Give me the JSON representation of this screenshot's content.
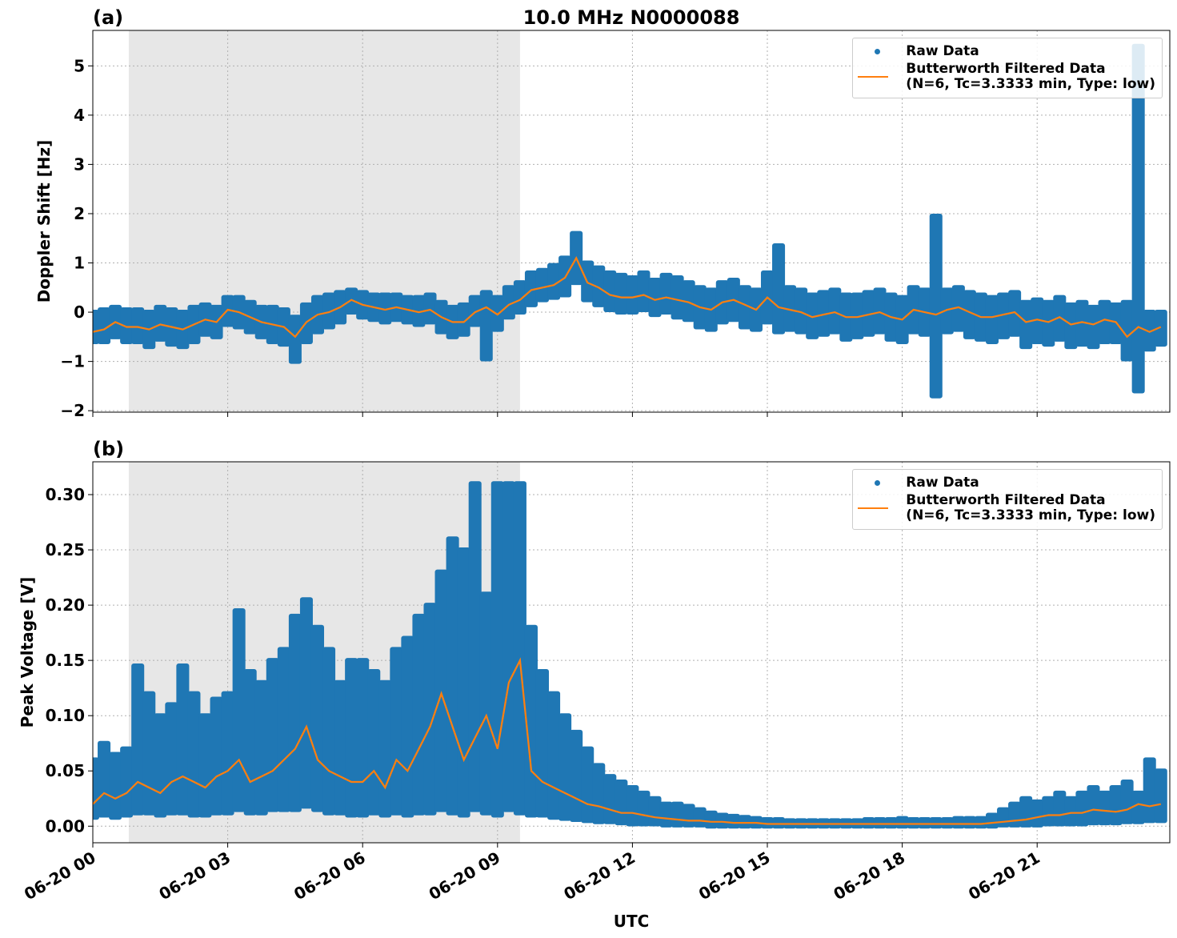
{
  "chart_data": [
    {
      "type": "line",
      "panel": "(a)",
      "title": "10.0 MHz N0000088",
      "ylabel": "Doppler Shift [Hz]",
      "xlim": [
        0,
        23.95
      ],
      "ylim": [
        -2.03,
        5.72
      ],
      "grid": true,
      "shaded_span": [
        0.8,
        9.5
      ],
      "xticks": [
        0,
        3,
        6,
        9,
        12,
        15,
        18,
        21
      ],
      "yticks": [
        {
          "value": -2,
          "label": "−2"
        },
        {
          "value": -1,
          "label": "−1"
        },
        0,
        1,
        2,
        3,
        4,
        5
      ],
      "legend": "upper right",
      "x": [
        0,
        0.25,
        0.5,
        0.75,
        1,
        1.25,
        1.5,
        1.75,
        2,
        2.25,
        2.5,
        2.75,
        3,
        3.25,
        3.5,
        3.75,
        4,
        4.25,
        4.5,
        4.75,
        5,
        5.25,
        5.5,
        5.75,
        6,
        6.25,
        6.5,
        6.75,
        7,
        7.25,
        7.5,
        7.75,
        8,
        8.25,
        8.5,
        8.75,
        9,
        9.25,
        9.5,
        9.75,
        10,
        10.25,
        10.5,
        10.75,
        11,
        11.25,
        11.5,
        11.75,
        12,
        12.25,
        12.5,
        12.75,
        13,
        13.25,
        13.5,
        13.75,
        14,
        14.25,
        14.5,
        14.75,
        15,
        15.25,
        15.5,
        15.75,
        16,
        16.25,
        16.5,
        16.75,
        17,
        17.25,
        17.5,
        17.75,
        18,
        18.25,
        18.5,
        18.75,
        19,
        19.25,
        19.5,
        19.75,
        20,
        20.25,
        20.5,
        20.75,
        21,
        21.25,
        21.5,
        21.75,
        22,
        22.25,
        22.5,
        22.75,
        23,
        23.25,
        23.5,
        23.75
      ],
      "series": [
        {
          "name": "Raw Data",
          "color": "#1f77b4",
          "style": "range",
          "values": [
            0.0,
            0.05,
            0.1,
            0.05,
            0.05,
            0.0,
            0.1,
            0.05,
            0.0,
            0.1,
            0.15,
            0.1,
            0.3,
            0.3,
            0.2,
            0.1,
            0.1,
            0.05,
            -0.1,
            0.15,
            0.3,
            0.35,
            0.4,
            0.45,
            0.4,
            0.35,
            0.35,
            0.35,
            0.3,
            0.3,
            0.35,
            0.2,
            0.1,
            0.15,
            0.3,
            0.4,
            0.3,
            0.5,
            0.6,
            0.8,
            0.85,
            0.95,
            1.1,
            1.6,
            1.0,
            0.9,
            0.8,
            0.75,
            0.7,
            0.8,
            0.65,
            0.75,
            0.7,
            0.6,
            0.5,
            0.45,
            0.6,
            0.65,
            0.5,
            0.45,
            0.8,
            1.35,
            0.5,
            0.45,
            0.35,
            0.4,
            0.45,
            0.35,
            0.35,
            0.4,
            0.45,
            0.35,
            0.3,
            0.5,
            0.45,
            1.95,
            0.45,
            0.5,
            0.4,
            0.35,
            0.3,
            0.35,
            0.4,
            0.2,
            0.25,
            0.2,
            0.3,
            0.15,
            0.2,
            0.1,
            0.2,
            0.15,
            0.2,
            5.4,
            0.0,
            0.0
          ],
          "values_low": [
            -0.6,
            -0.6,
            -0.5,
            -0.6,
            -0.6,
            -0.7,
            -0.55,
            -0.65,
            -0.7,
            -0.6,
            -0.45,
            -0.5,
            -0.25,
            -0.3,
            -0.4,
            -0.5,
            -0.6,
            -0.65,
            -1.0,
            -0.6,
            -0.4,
            -0.3,
            -0.2,
            0.0,
            -0.1,
            -0.15,
            -0.2,
            -0.15,
            -0.2,
            -0.25,
            -0.2,
            -0.4,
            -0.5,
            -0.45,
            -0.25,
            -0.95,
            -0.35,
            -0.1,
            0.0,
            0.15,
            0.25,
            0.3,
            0.35,
            0.6,
            0.25,
            0.15,
            0.05,
            0.0,
            0.0,
            0.05,
            -0.05,
            0.0,
            -0.1,
            -0.15,
            -0.3,
            -0.35,
            -0.2,
            -0.15,
            -0.3,
            -0.35,
            -0.2,
            -0.4,
            -0.35,
            -0.4,
            -0.5,
            -0.45,
            -0.4,
            -0.55,
            -0.5,
            -0.45,
            -0.4,
            -0.55,
            -0.6,
            -0.4,
            -0.45,
            -1.7,
            -0.4,
            -0.35,
            -0.5,
            -0.55,
            -0.6,
            -0.5,
            -0.45,
            -0.7,
            -0.6,
            -0.65,
            -0.55,
            -0.7,
            -0.65,
            -0.7,
            -0.6,
            -0.6,
            -0.95,
            -1.6,
            -0.75,
            -0.65
          ]
        },
        {
          "name": "Butterworth Filtered Data\n(N=6, Tc=3.3333 min, Type: low)",
          "color": "#ff7f0e",
          "style": "line",
          "values": [
            -0.4,
            -0.35,
            -0.2,
            -0.3,
            -0.3,
            -0.35,
            -0.25,
            -0.3,
            -0.35,
            -0.25,
            -0.15,
            -0.2,
            0.05,
            0.0,
            -0.1,
            -0.2,
            -0.25,
            -0.3,
            -0.5,
            -0.2,
            -0.05,
            0.0,
            0.1,
            0.25,
            0.15,
            0.1,
            0.05,
            0.1,
            0.05,
            0.0,
            0.05,
            -0.1,
            -0.2,
            -0.2,
            0.0,
            0.1,
            -0.05,
            0.15,
            0.25,
            0.45,
            0.5,
            0.55,
            0.7,
            1.1,
            0.6,
            0.5,
            0.35,
            0.3,
            0.3,
            0.35,
            0.25,
            0.3,
            0.25,
            0.2,
            0.1,
            0.05,
            0.2,
            0.25,
            0.15,
            0.05,
            0.3,
            0.1,
            0.05,
            0.0,
            -0.1,
            -0.05,
            0.0,
            -0.1,
            -0.1,
            -0.05,
            0.0,
            -0.1,
            -0.15,
            0.05,
            0.0,
            -0.05,
            0.05,
            0.1,
            0.0,
            -0.1,
            -0.1,
            -0.05,
            0.0,
            -0.2,
            -0.15,
            -0.2,
            -0.1,
            -0.25,
            -0.2,
            -0.25,
            -0.15,
            -0.2,
            -0.5,
            -0.3,
            -0.4,
            -0.3
          ]
        }
      ]
    },
    {
      "type": "line",
      "panel": "(b)",
      "ylabel": "Peak Voltage [V]",
      "xlabel": "UTC",
      "xlim": [
        0,
        23.95
      ],
      "ylim": [
        -0.015,
        0.3297
      ],
      "grid": true,
      "shaded_span": [
        0.8,
        9.5
      ],
      "xticks": [
        {
          "value": 0,
          "label": "06-20 00"
        },
        {
          "value": 3,
          "label": "06-20 03"
        },
        {
          "value": 6,
          "label": "06-20 06"
        },
        {
          "value": 9,
          "label": "06-20 09"
        },
        {
          "value": 12,
          "label": "06-20 12"
        },
        {
          "value": 15,
          "label": "06-20 15"
        },
        {
          "value": 18,
          "label": "06-20 18"
        },
        {
          "value": 21,
          "label": "06-20 21"
        }
      ],
      "yticks": [
        {
          "value": 0,
          "label": "0.00"
        },
        {
          "value": 0.05,
          "label": "0.05"
        },
        {
          "value": 0.1,
          "label": "0.10"
        },
        {
          "value": 0.15,
          "label": "0.15"
        },
        {
          "value": 0.2,
          "label": "0.20"
        },
        {
          "value": 0.25,
          "label": "0.25"
        },
        {
          "value": 0.3,
          "label": "0.30"
        }
      ],
      "legend": "upper right",
      "x": [
        0,
        0.25,
        0.5,
        0.75,
        1,
        1.25,
        1.5,
        1.75,
        2,
        2.25,
        2.5,
        2.75,
        3,
        3.25,
        3.5,
        3.75,
        4,
        4.25,
        4.5,
        4.75,
        5,
        5.25,
        5.5,
        5.75,
        6,
        6.25,
        6.5,
        6.75,
        7,
        7.25,
        7.5,
        7.75,
        8,
        8.25,
        8.5,
        8.75,
        9,
        9.25,
        9.5,
        9.75,
        10,
        10.25,
        10.5,
        10.75,
        11,
        11.25,
        11.5,
        11.75,
        12,
        12.25,
        12.5,
        12.75,
        13,
        13.25,
        13.5,
        13.75,
        14,
        14.25,
        14.5,
        14.75,
        15,
        15.25,
        15.5,
        15.75,
        16,
        16.25,
        16.5,
        16.75,
        17,
        17.25,
        17.5,
        17.75,
        18,
        18.25,
        18.5,
        18.75,
        19,
        19.25,
        19.5,
        19.75,
        20,
        20.25,
        20.5,
        20.75,
        21,
        21.25,
        21.5,
        21.75,
        22,
        22.25,
        22.5,
        22.75,
        23,
        23.25,
        23.5,
        23.75
      ],
      "series": [
        {
          "name": "Raw Data",
          "color": "#1f77b4",
          "style": "range",
          "values": [
            0.06,
            0.075,
            0.065,
            0.07,
            0.145,
            0.12,
            0.1,
            0.11,
            0.145,
            0.12,
            0.1,
            0.115,
            0.12,
            0.195,
            0.14,
            0.13,
            0.15,
            0.16,
            0.19,
            0.205,
            0.18,
            0.16,
            0.13,
            0.15,
            0.15,
            0.14,
            0.13,
            0.16,
            0.17,
            0.19,
            0.2,
            0.23,
            0.26,
            0.25,
            0.31,
            0.21,
            0.31,
            0.31,
            0.31,
            0.18,
            0.14,
            0.12,
            0.1,
            0.085,
            0.07,
            0.055,
            0.045,
            0.04,
            0.035,
            0.03,
            0.025,
            0.02,
            0.02,
            0.018,
            0.015,
            0.012,
            0.01,
            0.009,
            0.008,
            0.007,
            0.006,
            0.006,
            0.005,
            0.005,
            0.005,
            0.005,
            0.005,
            0.005,
            0.005,
            0.006,
            0.006,
            0.006,
            0.007,
            0.006,
            0.006,
            0.006,
            0.006,
            0.007,
            0.007,
            0.007,
            0.01,
            0.015,
            0.02,
            0.025,
            0.022,
            0.025,
            0.03,
            0.025,
            0.03,
            0.035,
            0.03,
            0.035,
            0.04,
            0.03,
            0.06,
            0.05
          ],
          "values_low": [
            0.008,
            0.01,
            0.008,
            0.01,
            0.012,
            0.012,
            0.01,
            0.012,
            0.012,
            0.01,
            0.01,
            0.012,
            0.012,
            0.015,
            0.012,
            0.012,
            0.015,
            0.015,
            0.015,
            0.018,
            0.015,
            0.012,
            0.012,
            0.01,
            0.01,
            0.012,
            0.01,
            0.012,
            0.01,
            0.012,
            0.012,
            0.015,
            0.012,
            0.01,
            0.015,
            0.012,
            0.01,
            0.015,
            0.012,
            0.01,
            0.01,
            0.008,
            0.007,
            0.006,
            0.005,
            0.004,
            0.004,
            0.003,
            0.002,
            0.002,
            0.002,
            0.001,
            0.001,
            0.001,
            0.001,
            0.0,
            0.0,
            0.0,
            0.0,
            0.0,
            0.0,
            0.0,
            0.0,
            0.0,
            0.0,
            0.0,
            0.0,
            0.0,
            0.0,
            0.0,
            0.0,
            0.0,
            0.0,
            0.0,
            0.0,
            0.0,
            0.0,
            0.0,
            0.0,
            0.0,
            0.0,
            0.001,
            0.001,
            0.001,
            0.001,
            0.002,
            0.002,
            0.002,
            0.002,
            0.003,
            0.003,
            0.003,
            0.004,
            0.004,
            0.005,
            0.005
          ]
        },
        {
          "name": "Butterworth Filtered Data\n(N=6, Tc=3.3333 min, Type: low)",
          "color": "#ff7f0e",
          "style": "line",
          "values": [
            0.02,
            0.03,
            0.025,
            0.03,
            0.04,
            0.035,
            0.03,
            0.04,
            0.045,
            0.04,
            0.035,
            0.045,
            0.05,
            0.06,
            0.04,
            0.045,
            0.05,
            0.06,
            0.07,
            0.09,
            0.06,
            0.05,
            0.045,
            0.04,
            0.04,
            0.05,
            0.035,
            0.06,
            0.05,
            0.07,
            0.09,
            0.12,
            0.09,
            0.06,
            0.08,
            0.1,
            0.07,
            0.13,
            0.15,
            0.05,
            0.04,
            0.035,
            0.03,
            0.025,
            0.02,
            0.018,
            0.015,
            0.012,
            0.012,
            0.01,
            0.008,
            0.007,
            0.006,
            0.005,
            0.005,
            0.004,
            0.004,
            0.003,
            0.003,
            0.003,
            0.002,
            0.002,
            0.002,
            0.002,
            0.002,
            0.002,
            0.002,
            0.002,
            0.002,
            0.002,
            0.002,
            0.002,
            0.002,
            0.002,
            0.002,
            0.002,
            0.002,
            0.002,
            0.002,
            0.002,
            0.003,
            0.004,
            0.005,
            0.006,
            0.008,
            0.01,
            0.01,
            0.012,
            0.012,
            0.015,
            0.014,
            0.013,
            0.015,
            0.02,
            0.018,
            0.02
          ]
        }
      ]
    }
  ]
}
